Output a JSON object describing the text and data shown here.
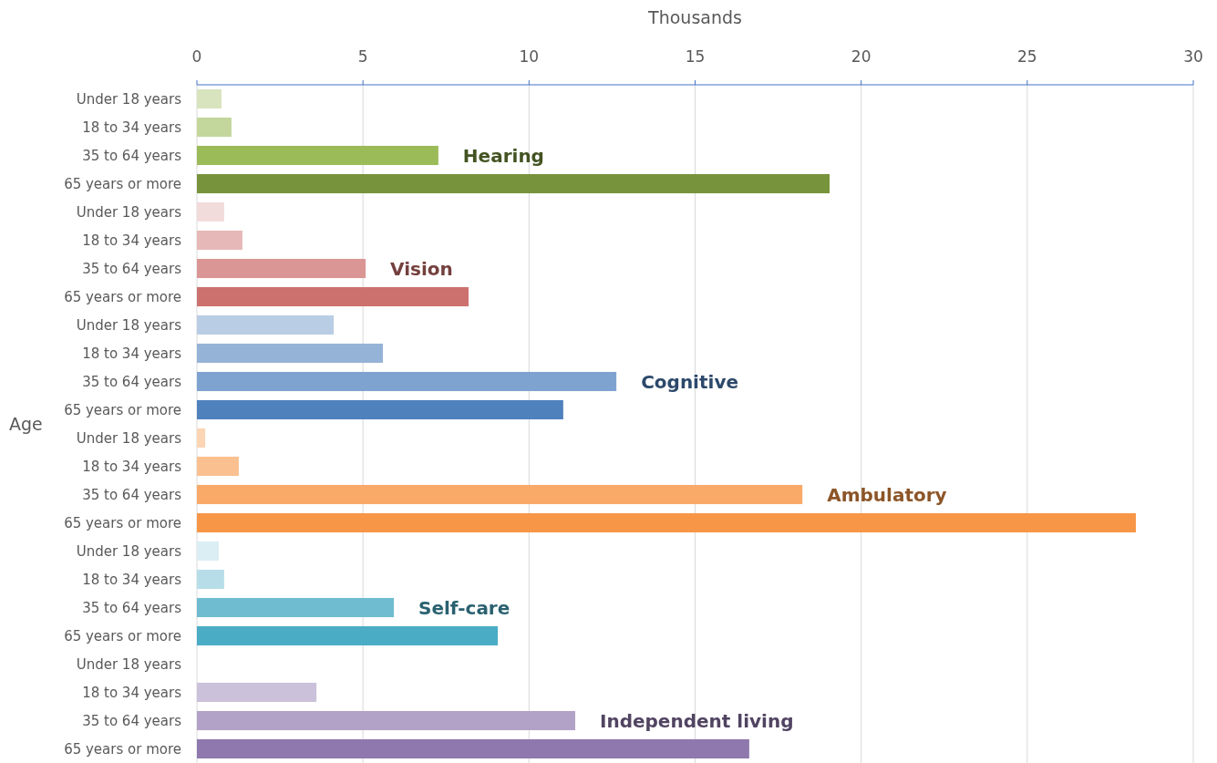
{
  "chart_data": {
    "type": "bar",
    "orientation": "horizontal",
    "xlabel": "Thousands",
    "ylabel": "Age",
    "categories": [
      "Under 18 years",
      "18 to 34 years",
      "35 to 64 years",
      "65 years or more",
      "Under 18 years",
      "18 to 34 years",
      "35 to 64 years",
      "65 years or more",
      "Under 18 years",
      "18 to 34 years",
      "35 to 64 years",
      "65 years or more",
      "Under 18 years",
      "18 to 34 years",
      "35 to 64 years",
      "65 years or more",
      "Under 18 years",
      "18 to 34 years",
      "35 to 64 years",
      "65 years or more",
      "Under 18 years",
      "18 to 34 years",
      "35 to 64 years",
      "65 years or more"
    ],
    "series": [
      {
        "name": "Hearing",
        "colors": [
          "#d7e4bd",
          "#c3d69b",
          "#9bbb59",
          "#77933c",
          null,
          null,
          null,
          null,
          null,
          null,
          null,
          null,
          null,
          null,
          null,
          null,
          null,
          null,
          null,
          null,
          null,
          null,
          null,
          null
        ],
        "values": [
          0.74,
          1.04,
          7.27,
          19.05,
          null,
          null,
          null,
          null,
          null,
          null,
          null,
          null,
          null,
          null,
          null,
          null,
          null,
          null,
          null,
          null,
          null,
          null,
          null,
          null
        ]
      },
      {
        "name": "Vision",
        "colors": [
          null,
          null,
          null,
          null,
          "#f2dcdb",
          "#e6b9b8",
          "#da9694",
          "#cd716e",
          null,
          null,
          null,
          null,
          null,
          null,
          null,
          null,
          null,
          null,
          null,
          null,
          null,
          null,
          null,
          null
        ],
        "values": [
          null,
          null,
          null,
          null,
          0.82,
          1.37,
          5.08,
          8.18,
          null,
          null,
          null,
          null,
          null,
          null,
          null,
          null,
          null,
          null,
          null,
          null,
          null,
          null,
          null,
          null
        ]
      },
      {
        "name": "Cognitive",
        "colors": [
          null,
          null,
          null,
          null,
          null,
          null,
          null,
          null,
          "#b9cde5",
          "#95b3d7",
          "#7fa3d1",
          "#4f81bd",
          null,
          null,
          null,
          null,
          null,
          null,
          null,
          null,
          null,
          null,
          null,
          null
        ],
        "values": [
          null,
          null,
          null,
          null,
          null,
          null,
          null,
          null,
          4.12,
          5.6,
          12.63,
          11.03,
          null,
          null,
          null,
          null,
          null,
          null,
          null,
          null,
          null,
          null,
          null,
          null
        ]
      },
      {
        "name": "Ambulatory",
        "colors": [
          null,
          null,
          null,
          null,
          null,
          null,
          null,
          null,
          null,
          null,
          null,
          null,
          "#fcd5b5",
          "#fac090",
          "#f9a968",
          "#f79646",
          null,
          null,
          null,
          null,
          null,
          null,
          null,
          null
        ],
        "values": [
          null,
          null,
          null,
          null,
          null,
          null,
          null,
          null,
          null,
          null,
          null,
          null,
          0.25,
          1.26,
          18.23,
          28.27,
          null,
          null,
          null,
          null,
          null,
          null,
          null,
          null
        ]
      },
      {
        "name": "Self-care",
        "colors": [
          null,
          null,
          null,
          null,
          null,
          null,
          null,
          null,
          null,
          null,
          null,
          null,
          null,
          null,
          null,
          null,
          "#dbeef4",
          "#b7dee8",
          "#6fbcd0",
          "#4bacc6",
          null,
          null,
          null,
          null
        ],
        "values": [
          null,
          null,
          null,
          null,
          null,
          null,
          null,
          null,
          null,
          null,
          null,
          null,
          null,
          null,
          null,
          null,
          0.66,
          0.82,
          5.93,
          9.06,
          null,
          null,
          null,
          null
        ]
      },
      {
        "name": "Independent living",
        "colors": [
          null,
          null,
          null,
          null,
          null,
          null,
          null,
          null,
          null,
          null,
          null,
          null,
          null,
          null,
          null,
          null,
          null,
          null,
          null,
          null,
          null,
          "#ccc1da",
          "#b3a2c7",
          "#8f78ad"
        ],
        "values": [
          null,
          null,
          null,
          null,
          null,
          null,
          null,
          null,
          null,
          null,
          null,
          null,
          null,
          null,
          null,
          null,
          null,
          null,
          null,
          null,
          null,
          3.6,
          11.39,
          16.63
        ]
      }
    ],
    "xlim": [
      0,
      30
    ],
    "xticks": [
      0,
      5,
      10,
      15,
      20,
      25,
      30
    ],
    "grid": "x"
  }
}
